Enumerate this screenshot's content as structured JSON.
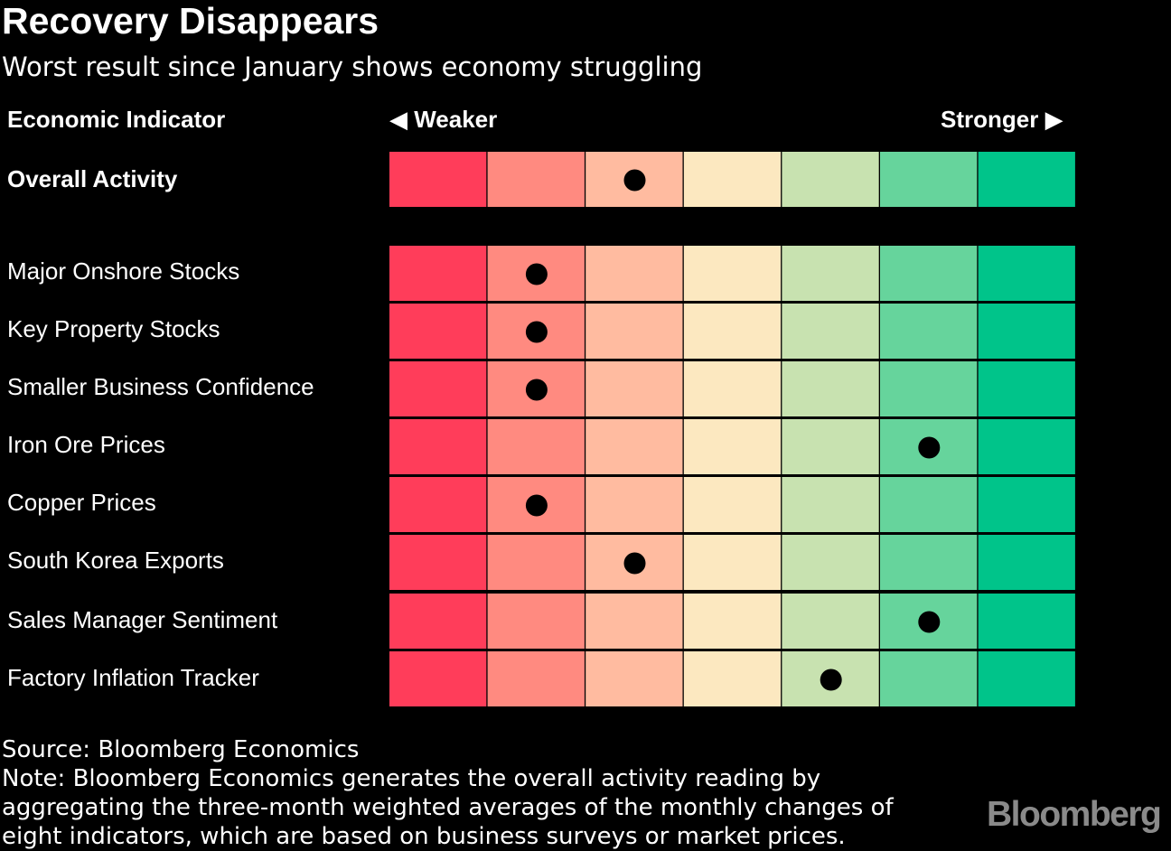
{
  "title": "Recovery Disappears",
  "subtitle": "Worst result since January shows economy struggling",
  "chart_data": {
    "type": "heatmap",
    "title": "Recovery Disappears",
    "subtitle": "Worst result since January shows economy struggling",
    "header": {
      "indicator": "Economic Indicator",
      "weaker": "◀ Weaker",
      "stronger": "Stronger ▶"
    },
    "scale_colors": [
      "#ff3d5a",
      "#ff8a80",
      "#ffbba0",
      "#fce8c0",
      "#c8e2b0",
      "#66d49c",
      "#00c48a"
    ],
    "scale_steps": 7,
    "overall": {
      "label": "Overall Activity",
      "position": 3
    },
    "indicators": [
      {
        "label": "Major Onshore Stocks",
        "position": 2
      },
      {
        "label": "Key Property Stocks",
        "position": 2
      },
      {
        "label": "Smaller Business Confidence",
        "position": 2
      },
      {
        "label": "Iron Ore Prices",
        "position": 6
      },
      {
        "label": "Copper Prices",
        "position": 2
      },
      {
        "label": "South Korea Exports",
        "position": 3
      },
      {
        "label": "Sales Manager Sentiment",
        "position": 6
      },
      {
        "label": "Factory Inflation Tracker",
        "position": 5
      }
    ]
  },
  "footer": {
    "source": "Source: Bloomberg Economics",
    "note_lines": [
      "Note: Bloomberg Economics generates the overall activity reading by",
      "aggregating the three-month weighted averages of the monthly changes of",
      "eight indicators, which are based on business surveys or market prices."
    ]
  },
  "logo": "Bloomberg"
}
